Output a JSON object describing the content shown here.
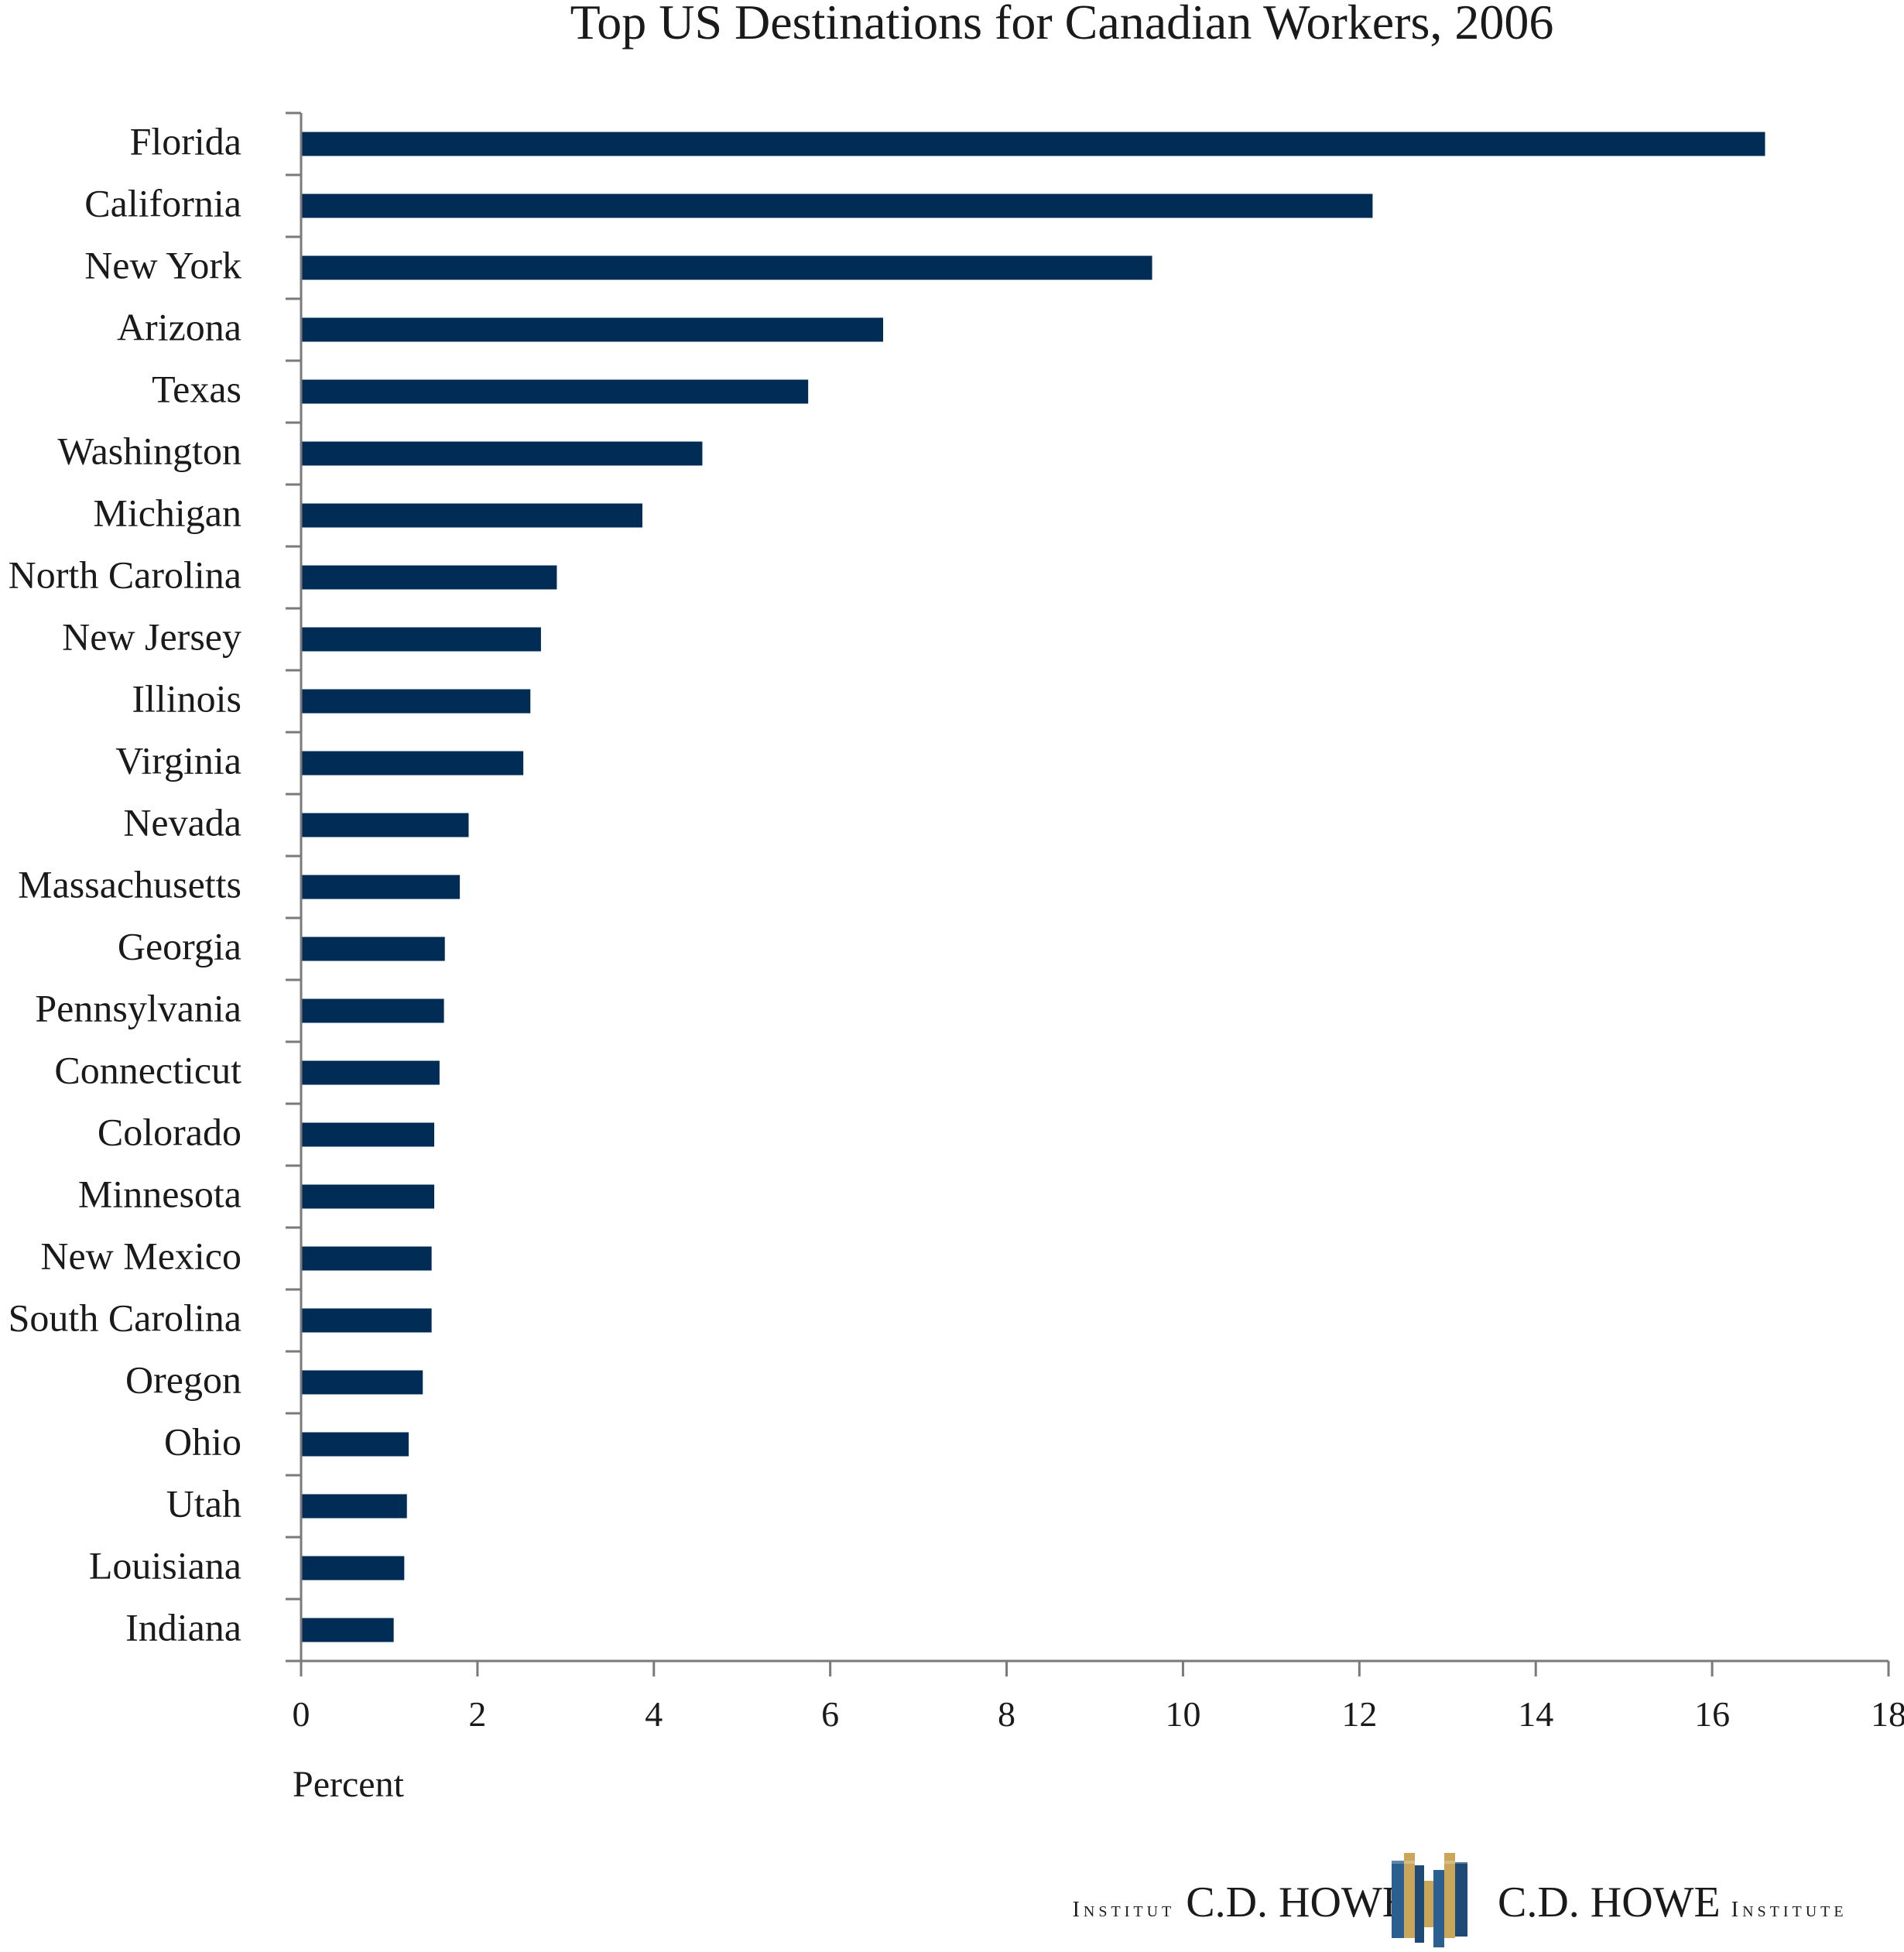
{
  "chart_data": {
    "type": "bar",
    "orientation": "horizontal",
    "title": "Top US Destinations for Canadian Workers, 2006",
    "xlabel": "Percent",
    "ylabel": "",
    "xlim": [
      0,
      18
    ],
    "xticks": [
      0,
      2,
      4,
      6,
      8,
      10,
      12,
      14,
      16,
      18
    ],
    "grid": false,
    "categories": [
      "Florida",
      "California",
      "New York",
      "Arizona",
      "Texas",
      "Washington",
      "Michigan",
      "North Carolina",
      "New Jersey",
      "Illinois",
      "Virginia",
      "Nevada",
      "Massachusetts",
      "Georgia",
      "Pennsylvania",
      "Connecticut",
      "Colorado",
      "Minnesota",
      "New Mexico",
      "South Carolina",
      "Oregon",
      "Ohio",
      "Utah",
      "Louisiana",
      "Indiana"
    ],
    "values": [
      16.6,
      12.15,
      9.65,
      6.6,
      5.75,
      4.55,
      3.87,
      2.9,
      2.72,
      2.6,
      2.52,
      1.9,
      1.8,
      1.63,
      1.62,
      1.57,
      1.51,
      1.51,
      1.48,
      1.48,
      1.38,
      1.22,
      1.2,
      1.17,
      1.05
    ],
    "bar_color": "#002c55"
  },
  "footer": {
    "left_small": "Institut",
    "left_big": "C.D. HOWE",
    "right_big": "C.D. HOWE",
    "right_small": "Institute",
    "logo_icon": "building-logo-icon"
  }
}
